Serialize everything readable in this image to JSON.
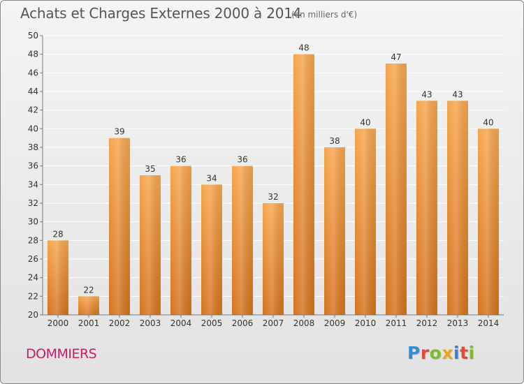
{
  "header": {
    "title": "Achats et Charges Externes 2000 à 2014",
    "subtitle": "(en milliers d'€)"
  },
  "footer": {
    "commune": "DOMMIERS",
    "brand": "Proxiti",
    "brand_colors": [
      "#2f8fd6",
      "#e8453c",
      "#7cbc2e",
      "#f2a21a",
      "#3a7fd0",
      "#e8453c",
      "#7cbc2e"
    ]
  },
  "colors": {
    "bar_top": "#f6a54e",
    "bar_bottom": "#d4731e",
    "grid": "#ffffff",
    "axis_text": "#333333",
    "commune": "#c41e6f"
  },
  "chart_data": {
    "type": "bar",
    "categories": [
      "2000",
      "2001",
      "2002",
      "2003",
      "2004",
      "2005",
      "2006",
      "2007",
      "2008",
      "2009",
      "2010",
      "2011",
      "2012",
      "2013",
      "2014"
    ],
    "values": [
      28,
      22,
      39,
      35,
      36,
      34,
      36,
      32,
      48,
      38,
      40,
      47,
      43,
      43,
      40
    ],
    "yticks": [
      "20",
      "22",
      "24",
      "26",
      "28",
      "30",
      "32",
      "34",
      "36",
      "38",
      "40",
      "42",
      "44",
      "46",
      "48",
      "50"
    ],
    "ylim": [
      20,
      50
    ],
    "grid": true,
    "data_labels": true
  }
}
